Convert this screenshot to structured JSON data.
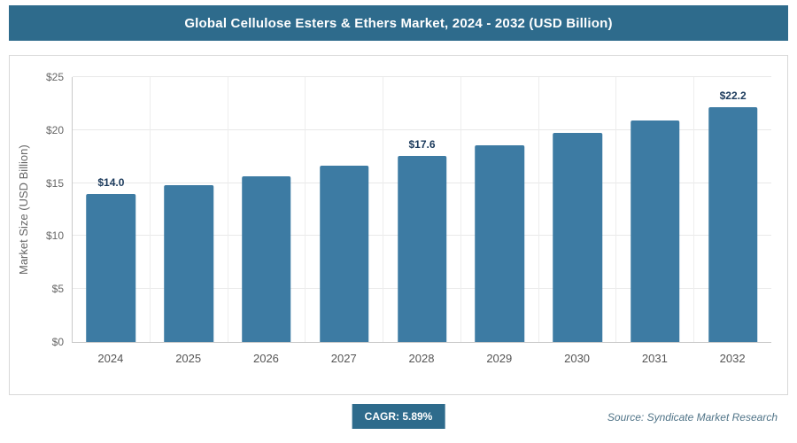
{
  "header": {
    "title": "Global Cellulose Esters & Ethers Market, 2024 - 2032 (USD Billion)"
  },
  "chart_data": {
    "type": "bar",
    "title": "Global Cellulose Esters & Ethers Market, 2024 - 2032 (USD Billion)",
    "categories": [
      "2024",
      "2025",
      "2026",
      "2027",
      "2028",
      "2029",
      "2030",
      "2031",
      "2032"
    ],
    "values": [
      14.0,
      14.8,
      15.6,
      16.6,
      17.6,
      18.6,
      19.7,
      20.9,
      22.2
    ],
    "bar_labels": [
      "$14.0",
      null,
      null,
      null,
      "$17.6",
      null,
      null,
      null,
      "$22.2"
    ],
    "xlabel": "",
    "ylabel": "Market Size (USD Billion)",
    "ylim": [
      0,
      25
    ],
    "yticks": [
      0,
      5,
      10,
      15,
      20,
      25
    ],
    "ytick_labels": [
      "$0",
      "$5",
      "$10",
      "$15",
      "$20",
      "$25"
    ],
    "grid": true,
    "legend": false,
    "bar_color": "#3d7ba3"
  },
  "footer": {
    "cagr_label": "CAGR: 5.89%",
    "source": "Source: Syndicate Market Research"
  },
  "colors": {
    "header_bg": "#2e6b8c",
    "bar": "#3d7ba3",
    "badge_bg": "#2e6b8c",
    "value_label": "#1b3a5c"
  }
}
